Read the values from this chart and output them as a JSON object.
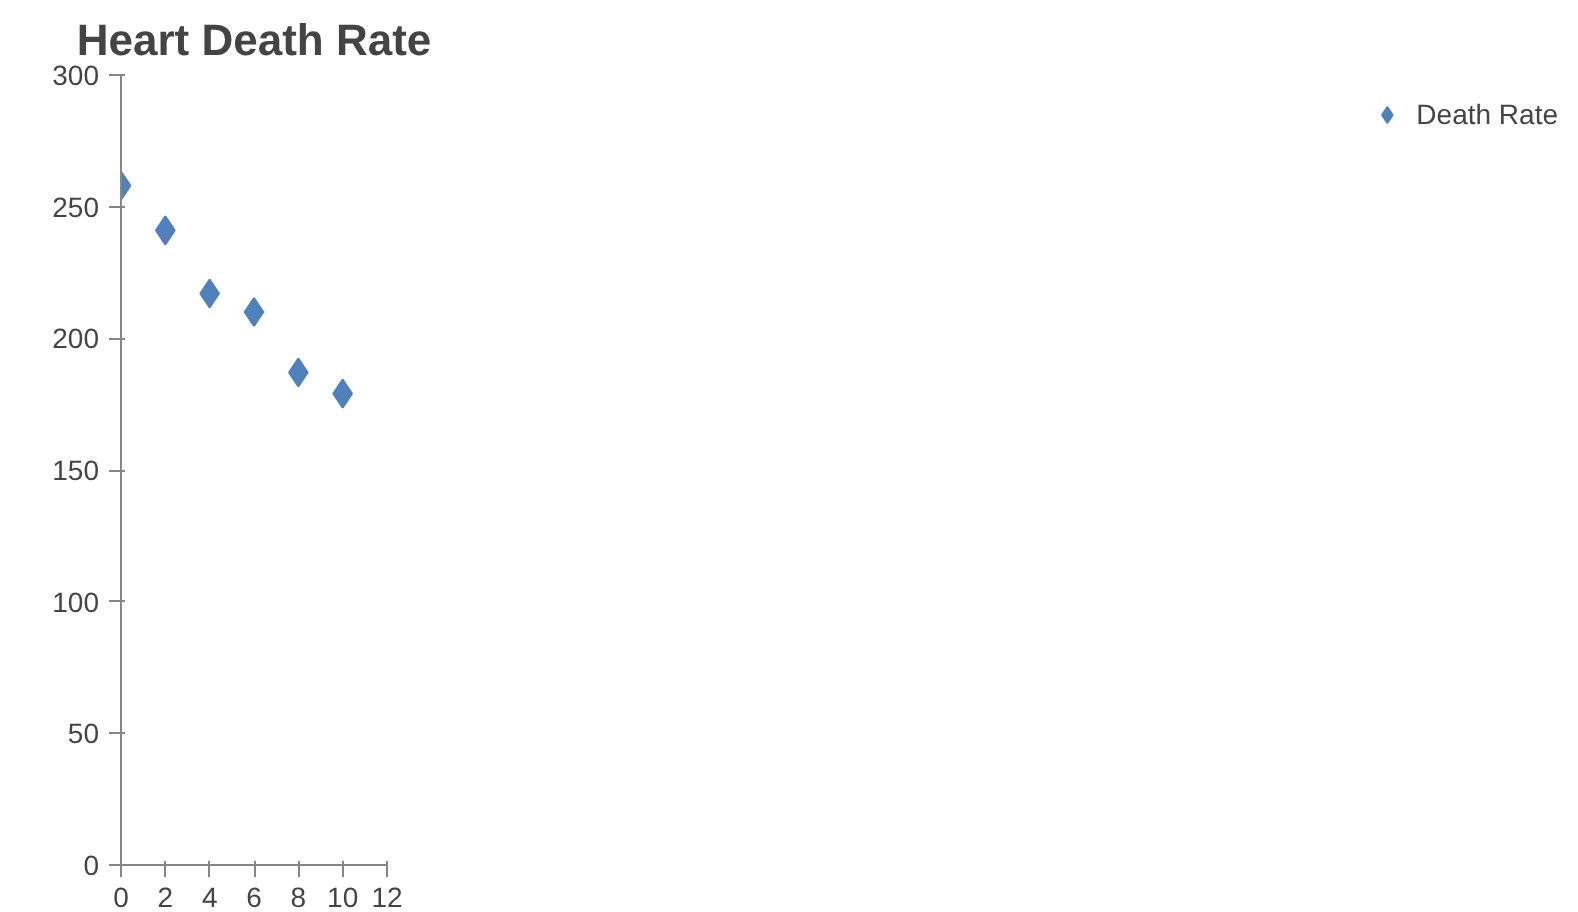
{
  "chart_data": {
    "type": "scatter",
    "title": "Heart Death Rate",
    "x": [
      0,
      2,
      4,
      6,
      8,
      10
    ],
    "series": [
      {
        "name": "Death Rate",
        "color": "#4f81bd",
        "values": [
          258,
          241,
          217,
          210,
          187,
          179
        ]
      }
    ],
    "xlim": [
      0,
      12
    ],
    "xticks": [
      0,
      2,
      4,
      6,
      8,
      10,
      12
    ],
    "ylim": [
      0,
      300
    ],
    "yticks": [
      0,
      50,
      100,
      150,
      200,
      250,
      300
    ],
    "marker": "diamond",
    "legend": "right",
    "grid": false
  }
}
